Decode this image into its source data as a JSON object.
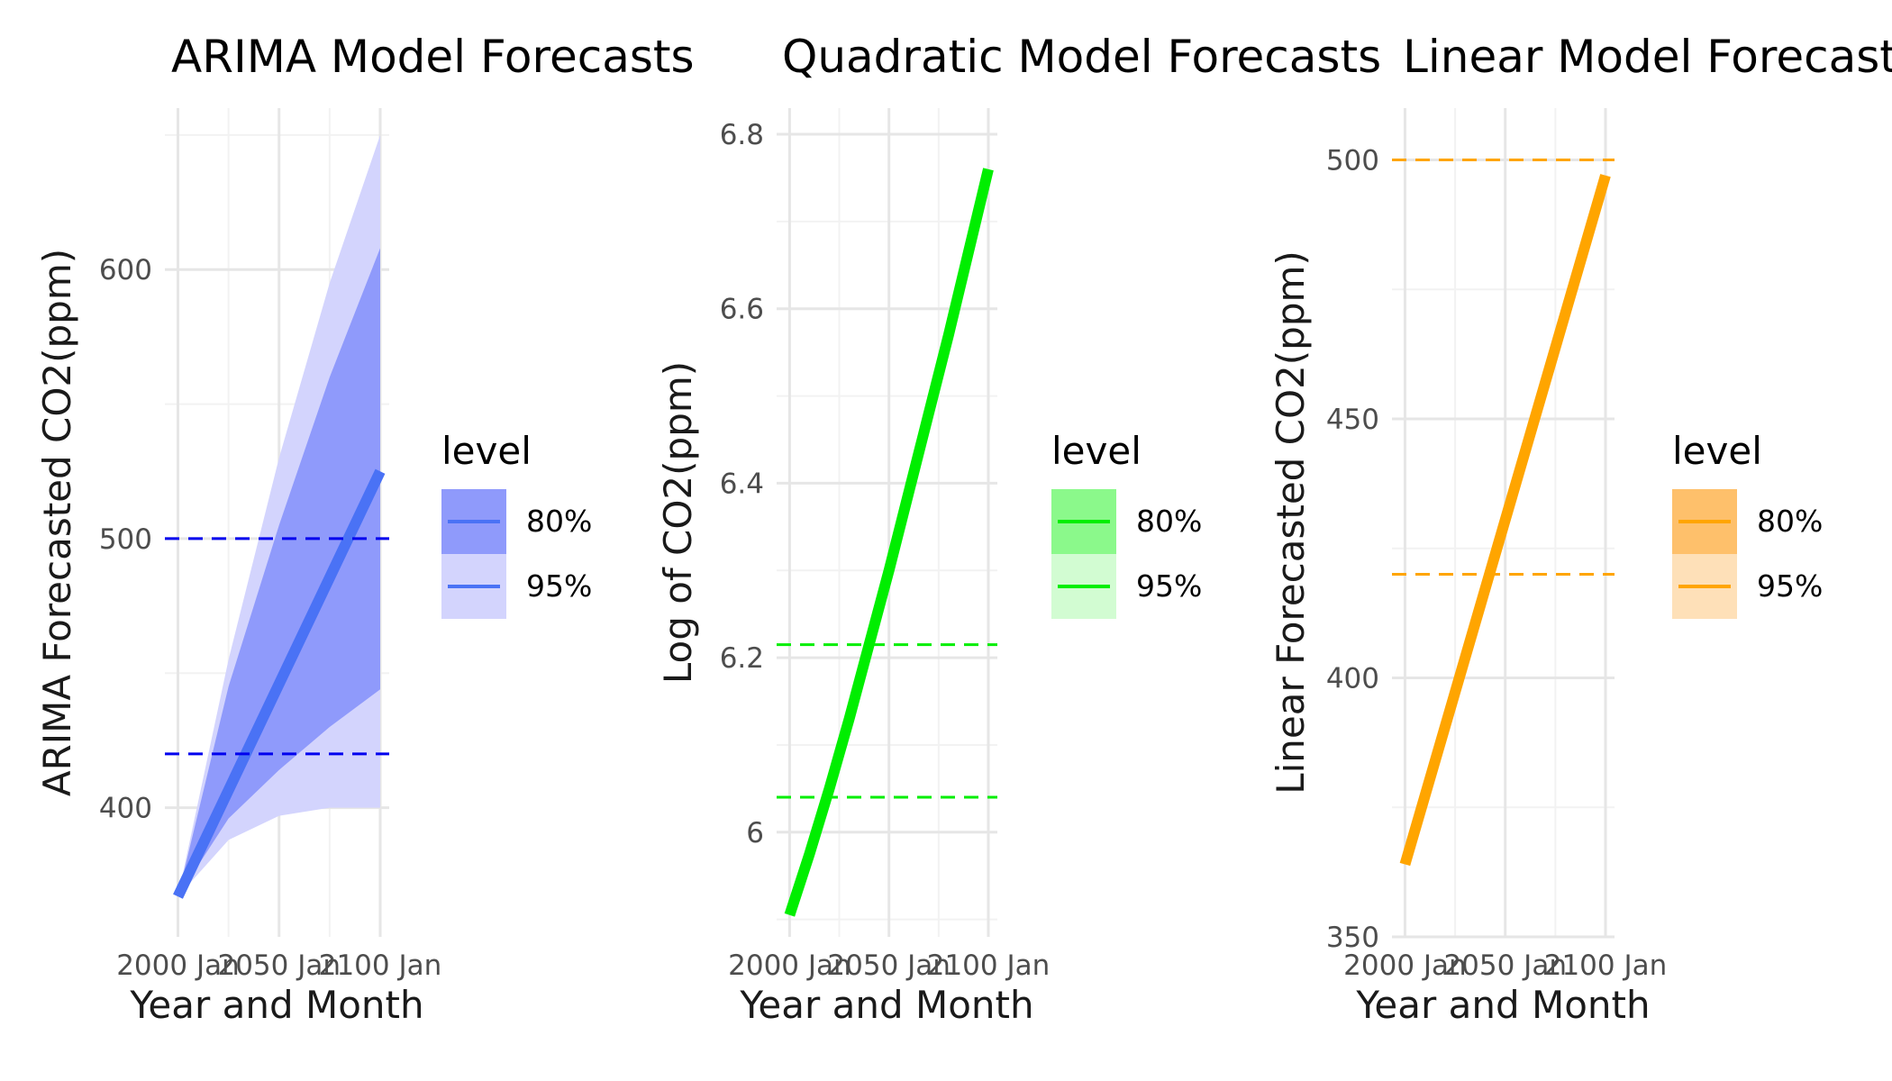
{
  "chart_data": [
    {
      "type": "line",
      "title": "ARIMA Model Forecasts",
      "xlabel": "Year and Month",
      "ylabel": "ARIMA Forecasted CO2(ppm)",
      "x_range": [
        1998,
        2100
      ],
      "x_ticks": [
        {
          "value": 2000,
          "label": "2000 Jan"
        },
        {
          "value": 2050,
          "label": "2050 Jan"
        },
        {
          "value": 2100,
          "label": "2100 Jan"
        }
      ],
      "ylim": [
        352,
        660
      ],
      "y_ticks": [
        400,
        500,
        600
      ],
      "grid": true,
      "color": "#4a72f5",
      "ref_color": "#0000ee",
      "band_colors": {
        "80%": "#8f9afb",
        "95%": "#d3d4fd"
      },
      "reference_lines": [
        420,
        500
      ],
      "legend": {
        "title": "level",
        "entries": [
          "80%",
          "95%"
        ],
        "position": "right"
      },
      "series": [
        {
          "x": [
            2000,
            2100
          ],
          "y": [
            367,
            525
          ]
        }
      ],
      "bands": [
        {
          "level": "95%",
          "x": [
            2000,
            2025,
            2050,
            2075,
            2100
          ],
          "lower": [
            367,
            388,
            397,
            400,
            400
          ],
          "upper": [
            367,
            455,
            530,
            595,
            650
          ]
        },
        {
          "level": "80%",
          "x": [
            2000,
            2025,
            2050,
            2075,
            2100
          ],
          "lower": [
            367,
            396,
            414,
            430,
            444
          ],
          "upper": [
            367,
            445,
            505,
            560,
            608
          ]
        }
      ]
    },
    {
      "type": "line",
      "title": "Quadratic Model Forecasts",
      "xlabel": "Year and Month",
      "ylabel": "Log of CO2(ppm)",
      "x_range": [
        1998,
        2100
      ],
      "x_ticks": [
        {
          "value": 2000,
          "label": "2000 Jan"
        },
        {
          "value": 2050,
          "label": "2050 Jan"
        },
        {
          "value": 2100,
          "label": "2100 Jan"
        }
      ],
      "ylim": [
        5.88,
        6.83
      ],
      "y_ticks": [
        6.0,
        6.2,
        6.4,
        6.6,
        6.8
      ],
      "grid": true,
      "color": "#00ee00",
      "ref_color": "#00ee00",
      "band_colors": {
        "80%": "#8bf98b",
        "95%": "#d2fcd2"
      },
      "reference_lines": [
        6.04,
        6.215
      ],
      "legend": {
        "title": "level",
        "entries": [
          "80%",
          "95%"
        ],
        "position": "right"
      },
      "series": [
        {
          "x": [
            2000,
            2010,
            2020,
            2030,
            2040,
            2050,
            2060,
            2070,
            2080,
            2090,
            2100
          ],
          "y": [
            5.905,
            5.975,
            6.05,
            6.13,
            6.215,
            6.3,
            6.39,
            6.48,
            6.57,
            6.665,
            6.76
          ]
        }
      ],
      "bands": []
    },
    {
      "type": "line",
      "title": "Linear Model Forecasts",
      "xlabel": "Year and Month",
      "ylabel": "Linear Forecasted CO2(ppm)",
      "x_range": [
        1998,
        2100
      ],
      "x_ticks": [
        {
          "value": 2000,
          "label": "2000 Jan"
        },
        {
          "value": 2050,
          "label": "2050 Jan"
        },
        {
          "value": 2100,
          "label": "2100 Jan"
        }
      ],
      "ylim": [
        350,
        510
      ],
      "y_ticks": [
        350,
        400,
        450,
        500
      ],
      "grid": true,
      "color": "#ffa500",
      "ref_color": "#ffa500",
      "band_colors": {
        "80%": "#fec06b",
        "95%": "#fee0b8"
      },
      "reference_lines": [
        420,
        500
      ],
      "legend": {
        "title": "level",
        "entries": [
          "80%",
          "95%"
        ],
        "position": "right"
      },
      "series": [
        {
          "x": [
            2000,
            2100
          ],
          "y": [
            364,
            497
          ]
        }
      ],
      "bands": []
    }
  ]
}
